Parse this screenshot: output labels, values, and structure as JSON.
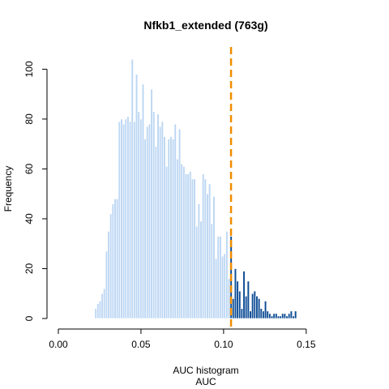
{
  "chart_data": {
    "type": "bar",
    "title": "Nfkb1_extended (763g)",
    "xlabel": "AUC histogram",
    "xlabel2": "AUC",
    "ylabel": "Frequency",
    "xlim": [
      0,
      0.18
    ],
    "ylim": [
      0,
      105
    ],
    "xticks": [
      0.0,
      0.05,
      0.1,
      0.15
    ],
    "xtick_labels": [
      "0.00",
      "0.05",
      "0.10",
      "0.15"
    ],
    "yticks": [
      0,
      20,
      40,
      60,
      80,
      100
    ],
    "ytick_labels": [
      "0",
      "20",
      "40",
      "60",
      "80",
      "100"
    ],
    "bin_start": 0.022,
    "bin_width": 0.0013,
    "threshold": 0.1045,
    "grid": false,
    "colors": {
      "below_threshold": "#bdd7f3",
      "above_threshold": "#0d4c95",
      "bar_border": "#ffffff",
      "threshold_line": "#f08c00"
    },
    "values": [
      4,
      6,
      7,
      10,
      12,
      27,
      35,
      42,
      46,
      48,
      48,
      79,
      80,
      78,
      80,
      81,
      79,
      104,
      79,
      98,
      83,
      80,
      94,
      72,
      77,
      78,
      92,
      83,
      69,
      82,
      77,
      79,
      73,
      61,
      72,
      73,
      72,
      78,
      64,
      76,
      62,
      61,
      58,
      58,
      59,
      56,
      56,
      37,
      46,
      39,
      58,
      56,
      50,
      54,
      38,
      49,
      24,
      33,
      33,
      25,
      26,
      35,
      16,
      33,
      8,
      20,
      15,
      11,
      4,
      19,
      9,
      15,
      3,
      10,
      11,
      9,
      8,
      4,
      3,
      7,
      3,
      2,
      1,
      2,
      2,
      1,
      1,
      2,
      2,
      1,
      2,
      3,
      1,
      3
    ]
  }
}
